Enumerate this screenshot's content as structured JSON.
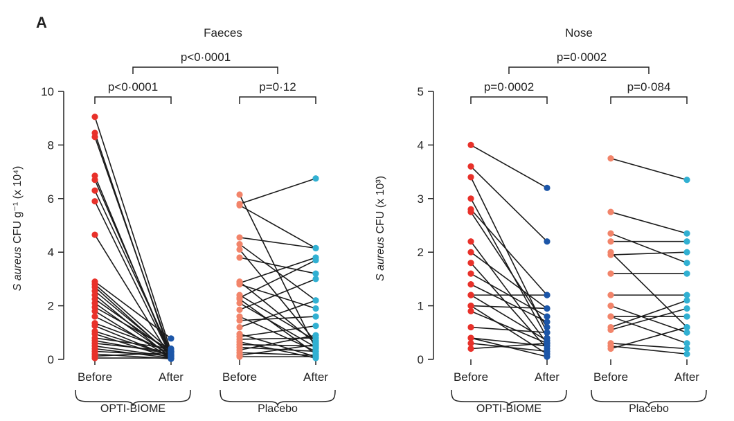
{
  "panel_letter": "A",
  "colors": {
    "opti_before": "#e8312a",
    "opti_after": "#1c56a8",
    "placebo_before": "#f2846a",
    "placebo_after": "#31b0d2",
    "line": "#1a1a1a"
  },
  "chart_data": [
    {
      "type": "paired-dot",
      "title": "Faeces",
      "ylabel_prefix": "S aureus",
      "ylabel_suffix": " CFU g⁻¹ (x 10⁴)",
      "ylim": [
        0,
        10
      ],
      "yticks": [
        0,
        2,
        4,
        6,
        8,
        10
      ],
      "categories": [
        "Before",
        "After",
        "Before",
        "After"
      ],
      "groups": [
        {
          "name": "OPTI-BIOME",
          "p_value": "p<0·0001",
          "before": [
            9.05,
            8.45,
            8.3,
            6.85,
            6.7,
            6.3,
            5.9,
            4.65,
            2.9,
            2.8,
            2.7,
            2.55,
            2.4,
            2.25,
            2.1,
            1.95,
            1.8,
            1.6,
            1.35,
            1.25,
            1.05,
            0.95,
            0.8,
            0.7,
            0.6,
            0.5,
            0.4,
            0.3,
            0.2,
            0.12,
            0.05
          ],
          "after": [
            0.3,
            0.1,
            0.2,
            0.05,
            0.15,
            0.25,
            0.1,
            0.05,
            0.78,
            0.3,
            0.15,
            0.2,
            0.05,
            0.25,
            0.1,
            0.35,
            0.05,
            0.2,
            0.3,
            0.1,
            0.15,
            0.05,
            0.4,
            0.2,
            0.3,
            0.1,
            0.05,
            0.15,
            0.02,
            0.25,
            0.05
          ]
        },
        {
          "name": "Placebo",
          "p_value": "p=0·12",
          "before": [
            6.15,
            5.8,
            5.75,
            4.55,
            4.3,
            4.1,
            3.8,
            2.9,
            2.85,
            2.8,
            2.4,
            2.3,
            2.25,
            2.1,
            1.85,
            1.6,
            1.45,
            1.2,
            0.95,
            0.85,
            0.75,
            0.65,
            0.55,
            0.45,
            0.35,
            0.25,
            0.15,
            0.1
          ],
          "after": [
            0.4,
            6.75,
            4.15,
            4.15,
            2.2,
            0.65,
            3.2,
            0.6,
            3.8,
            1.9,
            0.7,
            3.7,
            0.2,
            0.45,
            3.0,
            0.3,
            1.6,
            2.2,
            0.1,
            1.25,
            0.8,
            0.05,
            0.5,
            0.3,
            0.9,
            0.15,
            0.55,
            0.1
          ]
        }
      ],
      "overall_p_value": "p<0·0001"
    },
    {
      "type": "paired-dot",
      "title": "Nose",
      "ylabel_prefix": "S aureus",
      "ylabel_suffix": " CFU (x 10³)",
      "ylim": [
        0,
        5
      ],
      "yticks": [
        0,
        1,
        2,
        3,
        4,
        5
      ],
      "categories": [
        "Before",
        "After",
        "Before",
        "After"
      ],
      "groups": [
        {
          "name": "OPTI-BIOME",
          "p_value": "p=0·0002",
          "before": [
            4.0,
            3.6,
            3.4,
            3.0,
            2.8,
            2.75,
            2.2,
            2.0,
            1.8,
            1.6,
            1.4,
            1.2,
            1.2,
            1.0,
            1.0,
            0.9,
            0.6,
            0.4,
            0.4,
            0.3,
            0.2
          ],
          "after": [
            3.2,
            2.2,
            0.5,
            0.4,
            1.2,
            0.6,
            0.3,
            0.95,
            0.2,
            0.8,
            0.7,
            1.2,
            0.35,
            0.95,
            0.1,
            0.3,
            0.5,
            0.25,
            0.05,
            0.15,
            0.3
          ]
        },
        {
          "name": "Placebo",
          "p_value": "p=0·084",
          "before": [
            3.75,
            2.75,
            2.35,
            2.2,
            2.0,
            1.95,
            1.6,
            1.2,
            1.0,
            0.8,
            0.8,
            0.6,
            0.55,
            0.3,
            0.25,
            0.2
          ],
          "after": [
            3.35,
            2.35,
            1.8,
            2.2,
            0.6,
            2.0,
            1.6,
            1.2,
            0.5,
            0.8,
            0.3,
            1.1,
            0.95,
            0.2,
            0.1,
            0.6
          ]
        }
      ],
      "overall_p_value": "p=0·0002"
    }
  ]
}
